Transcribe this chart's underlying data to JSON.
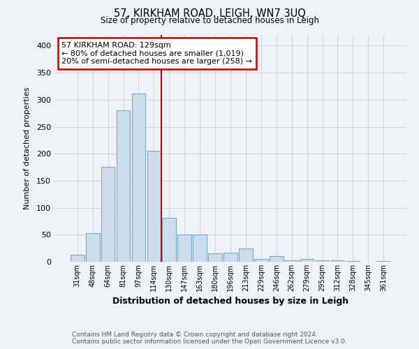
{
  "title": "57, KIRKHAM ROAD, LEIGH, WN7 3UQ",
  "subtitle": "Size of property relative to detached houses in Leigh",
  "xlabel": "Distribution of detached houses by size in Leigh",
  "ylabel": "Number of detached properties",
  "bar_labels": [
    "31sqm",
    "48sqm",
    "64sqm",
    "81sqm",
    "97sqm",
    "114sqm",
    "130sqm",
    "147sqm",
    "163sqm",
    "180sqm",
    "196sqm",
    "213sqm",
    "229sqm",
    "246sqm",
    "262sqm",
    "279sqm",
    "295sqm",
    "312sqm",
    "328sqm",
    "345sqm",
    "361sqm"
  ],
  "bar_heights": [
    13,
    53,
    176,
    280,
    312,
    205,
    82,
    51,
    50,
    15,
    17,
    25,
    5,
    10,
    3,
    5,
    2,
    2,
    1,
    0,
    1
  ],
  "bar_color": "#ccdded",
  "bar_edge_color": "#7aaac8",
  "vline_x_index": 6,
  "vline_color": "#cc0000",
  "annotation_title": "57 KIRKHAM ROAD: 129sqm",
  "annotation_line1": "← 80% of detached houses are smaller (1,019)",
  "annotation_line2": "20% of semi-detached houses are larger (258) →",
  "annotation_box_facecolor": "#ffffff",
  "annotation_box_edgecolor": "#cc0000",
  "ylim": [
    0,
    420
  ],
  "yticks": [
    0,
    50,
    100,
    150,
    200,
    250,
    300,
    350,
    400
  ],
  "footer1": "Contains HM Land Registry data © Crown copyright and database right 2024.",
  "footer2": "Contains public sector information licensed under the Open Government Licence v3.0.",
  "bg_color": "#eef2f7"
}
